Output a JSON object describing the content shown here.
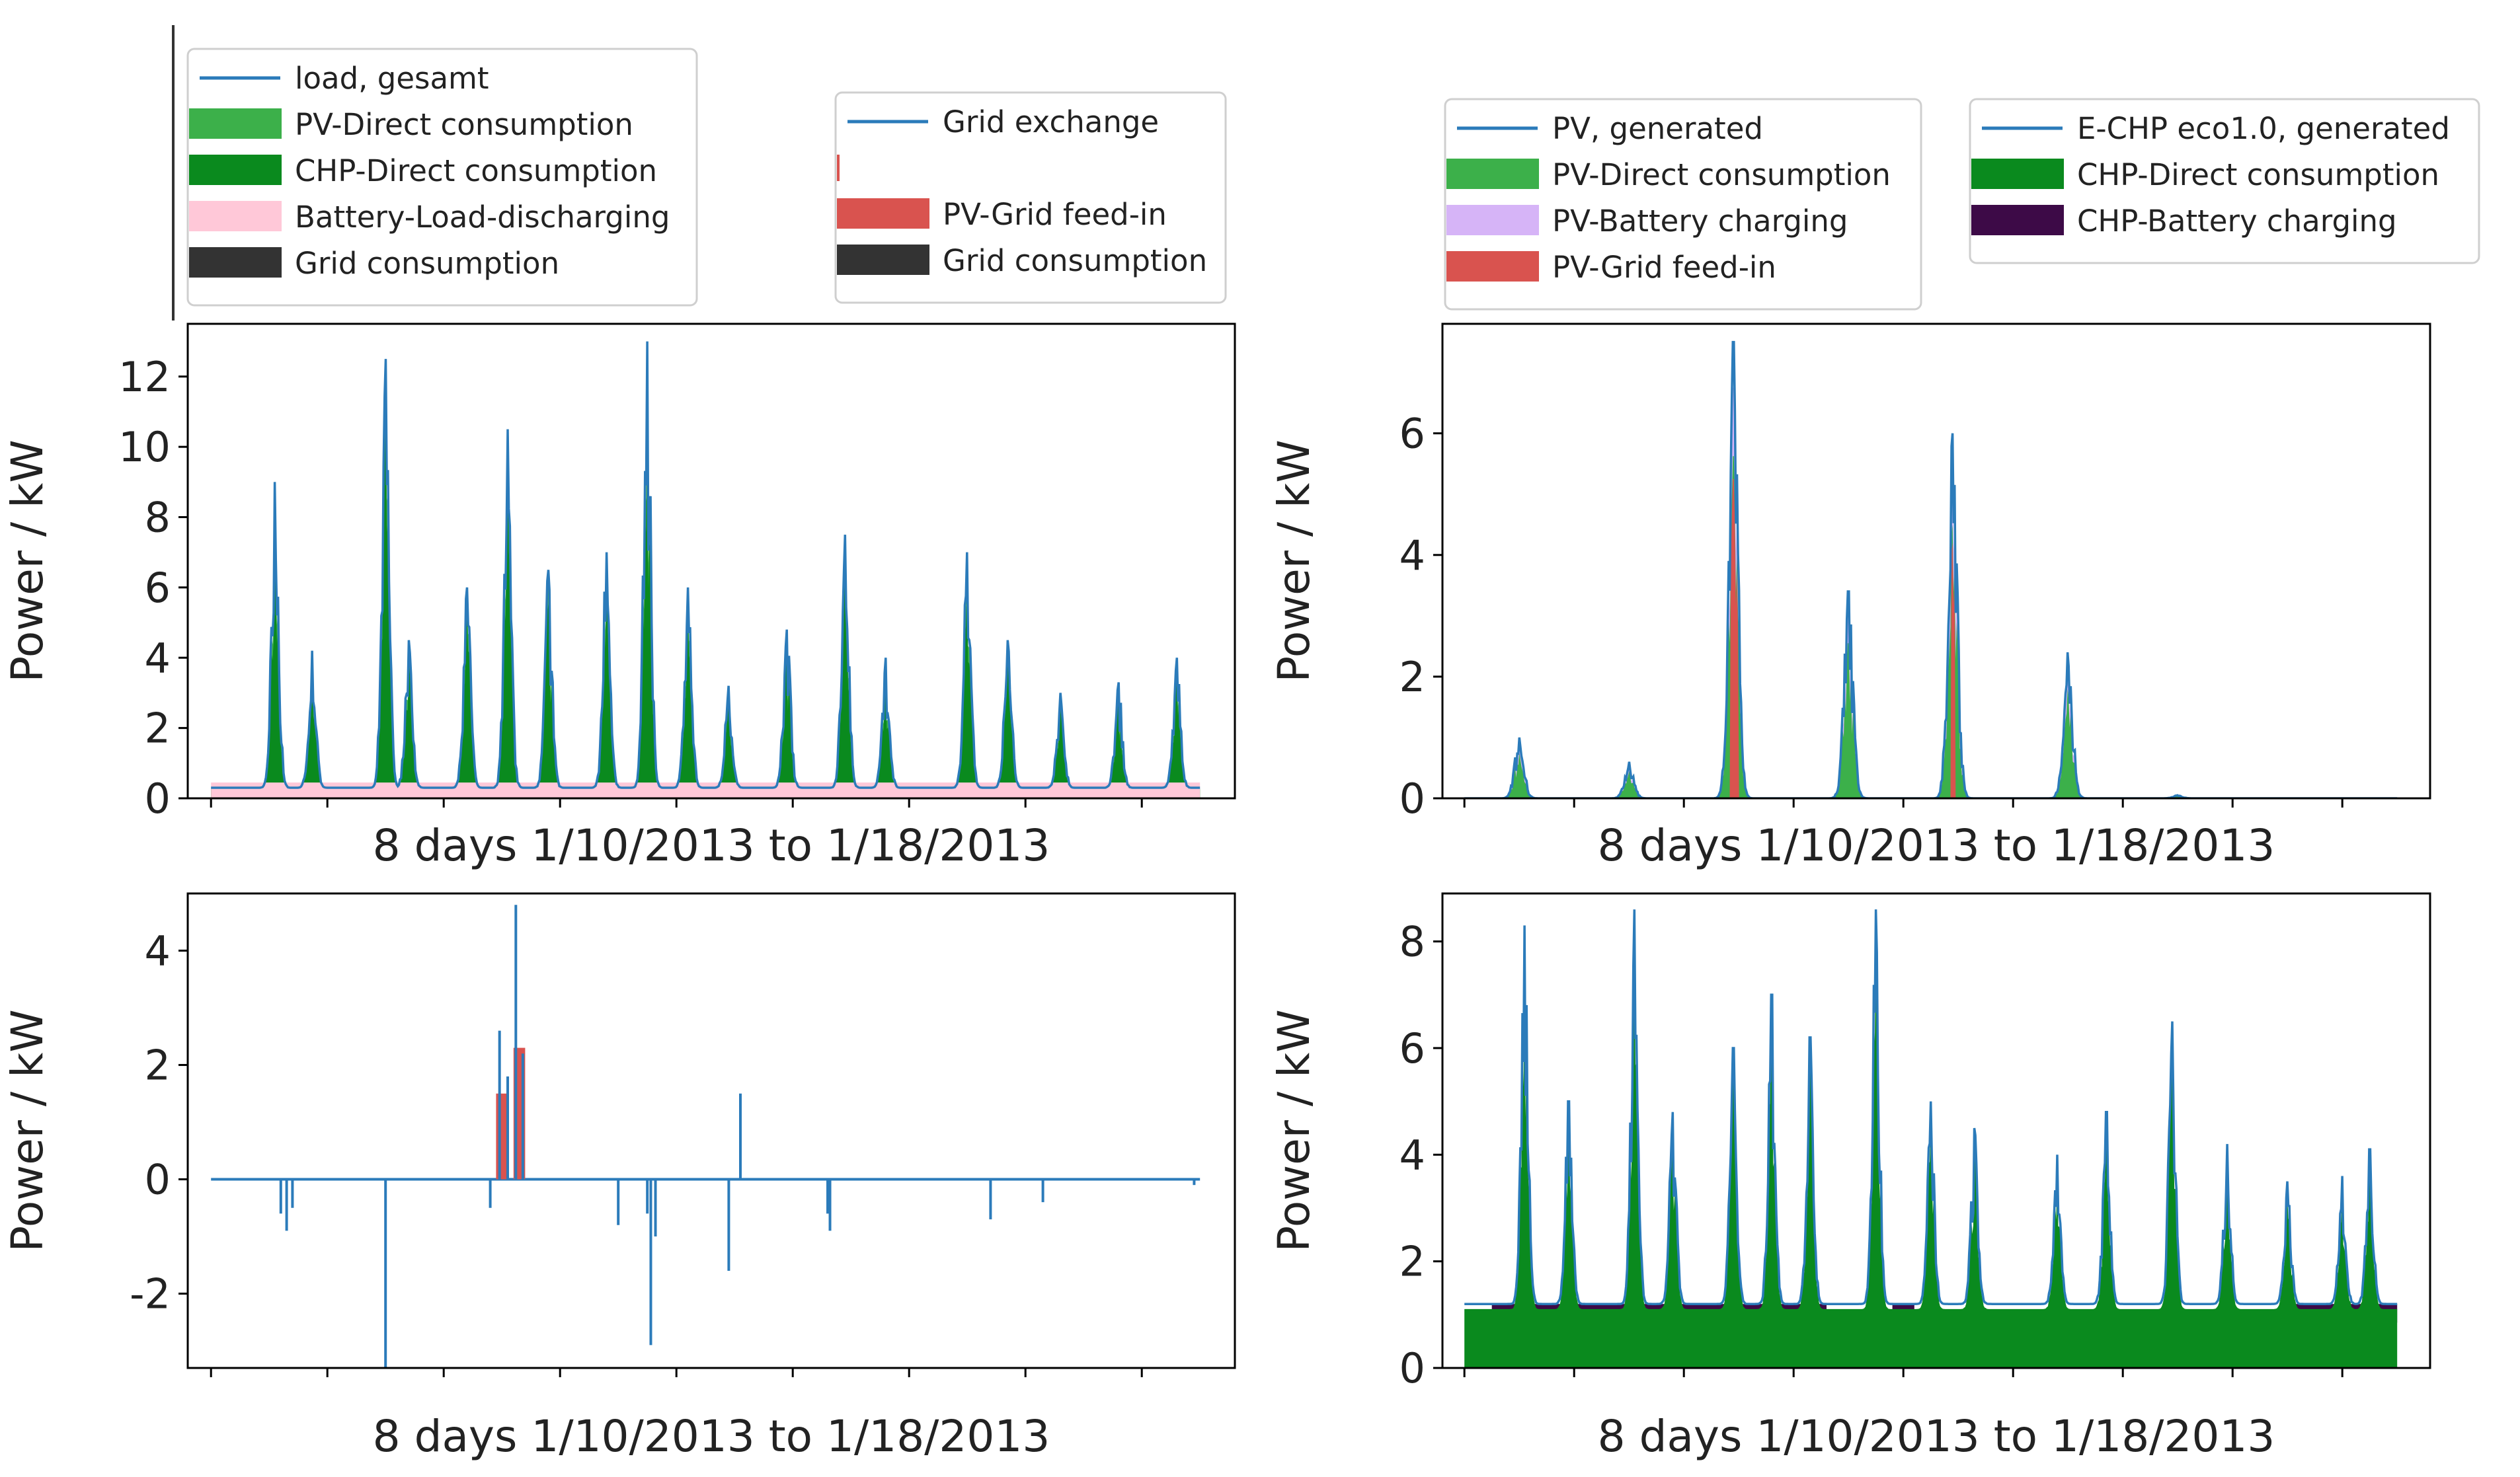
{
  "colors": {
    "load_line": "#2b7bba",
    "pv_direct": "#3cb04a",
    "chp_direct": "#0a8a1e",
    "battery_discharge": "#ffc8d8",
    "grid_consumption": "#333333",
    "pv_battery": "#d6b4f7",
    "pv_grid": "#d9534f",
    "chp_battery": "#3d0a47"
  },
  "legends": [
    {
      "id": "legend-load",
      "entries": [
        {
          "label": "load, gesamt",
          "kind": "line",
          "color": "#2b7bba"
        },
        {
          "label": "PV-Direct consumption",
          "kind": "patch",
          "color": "#3cb04a"
        },
        {
          "label": "CHP-Direct consumption",
          "kind": "patch",
          "color": "#0a8a1e"
        },
        {
          "label": "Battery-Load-discharging",
          "kind": "patch",
          "color": "#ffc8d8"
        },
        {
          "label": "Grid consumption",
          "kind": "patch",
          "color": "#333333"
        }
      ]
    },
    {
      "id": "legend-grid",
      "entries": [
        {
          "label": "Grid exchange",
          "kind": "line",
          "color": "#2b7bba"
        },
        {
          "label": "",
          "kind": "tick",
          "color": "#d9534f"
        },
        {
          "label": "PV-Grid feed-in",
          "kind": "patch",
          "color": "#d9534f"
        },
        {
          "label": "Grid consumption",
          "kind": "patch",
          "color": "#333333"
        }
      ]
    },
    {
      "id": "legend-pv",
      "entries": [
        {
          "label": "PV, generated",
          "kind": "line",
          "color": "#2b7bba"
        },
        {
          "label": "PV-Direct consumption",
          "kind": "patch",
          "color": "#3cb04a"
        },
        {
          "label": "PV-Battery charging",
          "kind": "patch",
          "color": "#d6b4f7"
        },
        {
          "label": "PV-Grid feed-in",
          "kind": "patch",
          "color": "#d9534f"
        }
      ]
    },
    {
      "id": "legend-chp",
      "entries": [
        {
          "label": "E-CHP eco1.0, generated",
          "kind": "line",
          "color": "#2b7bba"
        },
        {
          "label": "CHP-Direct consumption",
          "kind": "patch",
          "color": "#0a8a1e"
        },
        {
          "label": "CHP-Battery charging",
          "kind": "patch",
          "color": "#3d0a47"
        }
      ]
    }
  ],
  "chart_data": [
    {
      "id": "load",
      "type": "area",
      "title": "",
      "xlabel": "8 days 1/10/2013 to 1/18/2013",
      "ylabel": "Power / kW",
      "xlim": [
        -0.2,
        8.8
      ],
      "ylim": [
        0,
        13.5
      ],
      "yticks": [
        0,
        2,
        4,
        6,
        8,
        10,
        12
      ],
      "xticks": [
        0,
        1,
        2,
        3,
        4,
        5,
        6,
        7,
        8
      ],
      "x_extent": [
        0,
        8.5
      ],
      "baseline": 0.3,
      "series": [
        {
          "name": "load, gesamt",
          "role": "line",
          "color": "#2b7bba",
          "peaks": [
            [
              0.55,
              9.0
            ],
            [
              0.87,
              4.2
            ],
            [
              1.5,
              12.5
            ],
            [
              1.7,
              4.5
            ],
            [
              2.2,
              6.0
            ],
            [
              2.55,
              10.5
            ],
            [
              2.9,
              6.5
            ],
            [
              3.4,
              7.0
            ],
            [
              3.75,
              13.0
            ],
            [
              4.1,
              6.0
            ],
            [
              4.45,
              3.2
            ],
            [
              4.95,
              4.8
            ],
            [
              5.45,
              7.5
            ],
            [
              5.8,
              4.0
            ],
            [
              6.5,
              7.0
            ],
            [
              6.85,
              4.5
            ],
            [
              7.3,
              3.0
            ],
            [
              7.8,
              3.3
            ],
            [
              8.3,
              4.0
            ]
          ]
        },
        {
          "name": "CHP-Direct consumption",
          "role": "fill",
          "color": "#0a8a1e",
          "scale": 0.85
        },
        {
          "name": "PV-Direct consumption",
          "role": "fill",
          "color": "#3cb04a",
          "scale": 0.95
        },
        {
          "name": "Battery-Load-discharging",
          "role": "fill",
          "color": "#ffc8d8",
          "scale": 0.1
        }
      ]
    },
    {
      "id": "pv",
      "type": "area",
      "title": "",
      "xlabel": "8 days 1/10/2013 to 1/18/2013",
      "ylabel": "Power / kW",
      "xlim": [
        -0.2,
        8.8
      ],
      "ylim": [
        0,
        7.8
      ],
      "yticks": [
        0,
        2,
        4,
        6
      ],
      "xticks": [
        0,
        1,
        2,
        3,
        4,
        5,
        6,
        7,
        8
      ],
      "x_extent": [
        0,
        8.5
      ],
      "baseline": 0,
      "series": [
        {
          "name": "PV, generated",
          "role": "line",
          "color": "#2b7bba",
          "peaks": [
            [
              0.5,
              1.0
            ],
            [
              1.5,
              0.6
            ],
            [
              2.45,
              7.5
            ],
            [
              3.5,
              3.4
            ],
            [
              4.45,
              6.0
            ],
            [
              5.5,
              2.4
            ],
            [
              6.5,
              0.05
            ]
          ]
        },
        {
          "name": "PV-Direct consumption",
          "role": "fill",
          "color": "#3cb04a",
          "scale": 0.75
        },
        {
          "name": "PV-Battery charging",
          "role": "fill",
          "color": "#d6b4f7",
          "scale": 0.9
        },
        {
          "name": "PV-Grid feed-in",
          "role": "fill",
          "color": "#d9534f",
          "scale": 0.7
        }
      ]
    },
    {
      "id": "grid",
      "type": "line",
      "title": "",
      "xlabel": "8 days 1/10/2013 to 1/18/2013",
      "ylabel": "Power / kW",
      "xlim": [
        -0.2,
        8.8
      ],
      "ylim": [
        -3.3,
        5.0
      ],
      "yticks": [
        -2,
        0,
        2,
        4
      ],
      "xticks": [
        0,
        1,
        2,
        3,
        4,
        5,
        6,
        7,
        8
      ],
      "x_extent": [
        0,
        8.5
      ],
      "baseline": 0,
      "series": [
        {
          "name": "Grid exchange",
          "role": "line",
          "color": "#2b7bba",
          "spikes": [
            [
              0.6,
              -0.6
            ],
            [
              0.65,
              -0.9
            ],
            [
              0.7,
              -0.5
            ],
            [
              1.5,
              -3.3
            ],
            [
              2.4,
              -0.5
            ],
            [
              2.48,
              2.6
            ],
            [
              2.55,
              1.8
            ],
            [
              2.62,
              4.8
            ],
            [
              2.68,
              2.2
            ],
            [
              3.5,
              -0.8
            ],
            [
              3.75,
              -0.6
            ],
            [
              3.78,
              -2.9
            ],
            [
              3.82,
              -1.0
            ],
            [
              4.45,
              -1.6
            ],
            [
              4.55,
              1.5
            ],
            [
              5.3,
              -0.6
            ],
            [
              5.32,
              -0.9
            ],
            [
              6.7,
              -0.7
            ],
            [
              7.15,
              -0.4
            ],
            [
              8.45,
              -0.1
            ]
          ]
        },
        {
          "name": "PV-Grid feed-in",
          "role": "fill",
          "color": "#d9534f",
          "blocks": [
            [
              2.45,
              2.55,
              1.5
            ],
            [
              2.6,
              2.7,
              2.3
            ]
          ]
        }
      ]
    },
    {
      "id": "chp",
      "type": "area",
      "title": "",
      "xlabel": "8 days 1/10/2013 to 1/18/2013",
      "ylabel": "Power / kW",
      "xlim": [
        -0.2,
        8.8
      ],
      "ylim": [
        0,
        8.9
      ],
      "yticks": [
        0,
        2,
        4,
        6,
        8
      ],
      "xticks": [
        0,
        1,
        2,
        3,
        4,
        5,
        6,
        7,
        8
      ],
      "x_extent": [
        0,
        8.5
      ],
      "baseline": 1.2,
      "series": [
        {
          "name": "E-CHP eco1.0, generated",
          "role": "line",
          "color": "#2b7bba",
          "peaks": [
            [
              0.55,
              8.3
            ],
            [
              0.95,
              5.0
            ],
            [
              1.55,
              8.6
            ],
            [
              1.9,
              4.8
            ],
            [
              2.45,
              6.0
            ],
            [
              2.8,
              7.0
            ],
            [
              3.15,
              6.2
            ],
            [
              3.75,
              8.6
            ],
            [
              4.25,
              5.0
            ],
            [
              4.65,
              4.5
            ],
            [
              5.4,
              4.0
            ],
            [
              5.85,
              4.8
            ],
            [
              6.45,
              6.5
            ],
            [
              6.95,
              4.2
            ],
            [
              7.5,
              3.5
            ],
            [
              8.0,
              3.6
            ],
            [
              8.25,
              4.1
            ]
          ]
        },
        {
          "name": "CHP-Direct consumption",
          "role": "fill",
          "color": "#0a8a1e",
          "scale": 0.92
        },
        {
          "name": "CHP-Battery charging",
          "role": "band",
          "color": "#3d0a47",
          "bands": [
            [
              0.25,
              3.3
            ],
            [
              3.9,
              4.1
            ],
            [
              7.5,
              8.5
            ]
          ]
        }
      ]
    }
  ]
}
